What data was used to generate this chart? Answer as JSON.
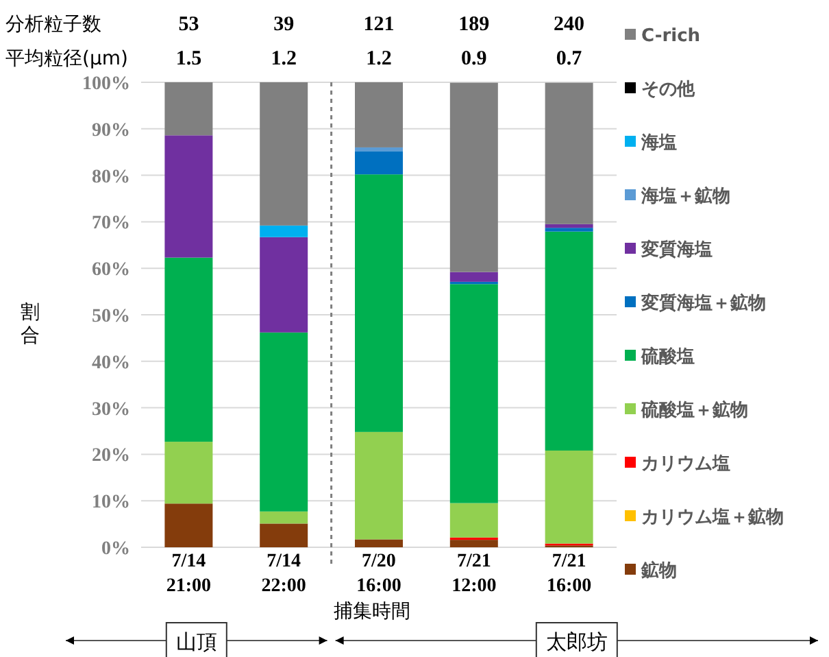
{
  "chart_data": {
    "type": "bar",
    "stacked": true,
    "ylabel": "割合",
    "xlabel": "捕集時間",
    "categories": [
      "7/14\n21:00",
      "7/14\n22:00",
      "7/20\n16:00",
      "7/21\n12:00",
      "7/21\n16:00"
    ],
    "series": [
      {
        "name": "鉱物",
        "color": "#843c0c",
        "values": [
          9.4,
          5.1,
          1.7,
          1.6,
          0.4
        ]
      },
      {
        "name": "カリウム塩＋鉱物",
        "color": "#ffc000",
        "values": [
          0,
          0,
          0,
          0,
          0
        ]
      },
      {
        "name": "カリウム塩",
        "color": "#ff0000",
        "values": [
          0,
          0,
          0,
          0.5,
          0.4
        ]
      },
      {
        "name": "硫酸塩＋鉱物",
        "color": "#92d050",
        "values": [
          13.3,
          2.6,
          23.1,
          7.4,
          20.0
        ]
      },
      {
        "name": "硫酸塩",
        "color": "#00b050",
        "values": [
          39.6,
          38.5,
          55.4,
          47.1,
          47.1
        ]
      },
      {
        "name": "変質海塩＋鉱物",
        "color": "#0070c0",
        "values": [
          0,
          0,
          5.0,
          0.5,
          0.8
        ]
      },
      {
        "name": "変質海塩",
        "color": "#7030a0",
        "values": [
          26.3,
          20.5,
          0,
          2.1,
          0.8
        ]
      },
      {
        "name": "海塩＋鉱物",
        "color": "#5b9bd5",
        "values": [
          0,
          0,
          0.8,
          0,
          0
        ]
      },
      {
        "name": "海塩",
        "color": "#00b0f0",
        "values": [
          0,
          2.5,
          0,
          0,
          0
        ]
      },
      {
        "name": "その他",
        "color": "#000000",
        "values": [
          0,
          0,
          0,
          0,
          0
        ]
      },
      {
        "name": "C-rich",
        "color": "#808080",
        "values": [
          11.4,
          30.8,
          14.0,
          40.7,
          30.4
        ]
      }
    ],
    "ylim": [
      0,
      100
    ],
    "yticks": [
      {
        "value": 0,
        "label": "0%"
      },
      {
        "value": 10,
        "label": "10%"
      },
      {
        "value": 20,
        "label": "20%"
      },
      {
        "value": 30,
        "label": "30%"
      },
      {
        "value": 40,
        "label": "40%"
      },
      {
        "value": 50,
        "label": "50%"
      },
      {
        "value": 60,
        "label": "60%"
      },
      {
        "value": 70,
        "label": "70%"
      },
      {
        "value": 80,
        "label": "80%"
      },
      {
        "value": 90,
        "label": "90%"
      },
      {
        "value": 100,
        "label": "100%"
      }
    ],
    "grid": "y",
    "legend": "right",
    "annotations": [
      "分析粒子数",
      "平均粒径(μm)",
      "山頂",
      "太郎坊",
      "53",
      "1.5",
      "39",
      "1.2",
      "121",
      "1.2",
      "189",
      "0.9",
      "240",
      "0.7"
    ]
  }
}
